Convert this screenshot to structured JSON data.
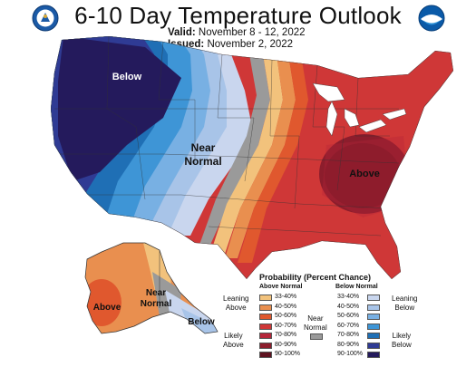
{
  "header": {
    "title": "6-10 Day Temperature Outlook",
    "valid_label": "Valid:",
    "valid_value": "November 8 - 12, 2022",
    "issued_label": "Issued:",
    "issued_value": "November 2, 2022"
  },
  "map_labels": {
    "conus_below": "Below",
    "conus_near_1": "Near",
    "conus_near_2": "Normal",
    "conus_above": "Above",
    "ak_above": "Above",
    "ak_near_1": "Near",
    "ak_near_2": "Normal",
    "ak_below": "Below"
  },
  "legend": {
    "title": "Probability (Percent Chance)",
    "above_header": "Above Normal",
    "below_header": "Below Normal",
    "near_label_1": "Near",
    "near_label_2": "Normal",
    "leaning_above_1": "Leaning",
    "leaning_above_2": "Above",
    "likely_above_1": "Likely",
    "likely_above_2": "Above",
    "leaning_below_1": "Leaning",
    "leaning_below_2": "Below",
    "likely_below_1": "Likely",
    "likely_below_2": "Below",
    "above_bins": [
      {
        "range": "33-40%",
        "color": "#f2c27c"
      },
      {
        "range": "40-50%",
        "color": "#e98f4f"
      },
      {
        "range": "50-60%",
        "color": "#e0582e"
      },
      {
        "range": "60-70%",
        "color": "#cf3737"
      },
      {
        "range": "70-80%",
        "color": "#b5263a"
      },
      {
        "range": "80-90%",
        "color": "#8c1d2c"
      },
      {
        "range": "90-100%",
        "color": "#5e1220"
      }
    ],
    "below_bins": [
      {
        "range": "33-40%",
        "color": "#c9d6ee"
      },
      {
        "range": "40-50%",
        "color": "#a8c4e8"
      },
      {
        "range": "50-60%",
        "color": "#78b0e3"
      },
      {
        "range": "60-70%",
        "color": "#3e95d6"
      },
      {
        "range": "70-80%",
        "color": "#1f6fb5"
      },
      {
        "range": "80-90%",
        "color": "#2f3b94"
      },
      {
        "range": "90-100%",
        "color": "#241a5c"
      }
    ],
    "near_color": "#9a9a9a"
  }
}
